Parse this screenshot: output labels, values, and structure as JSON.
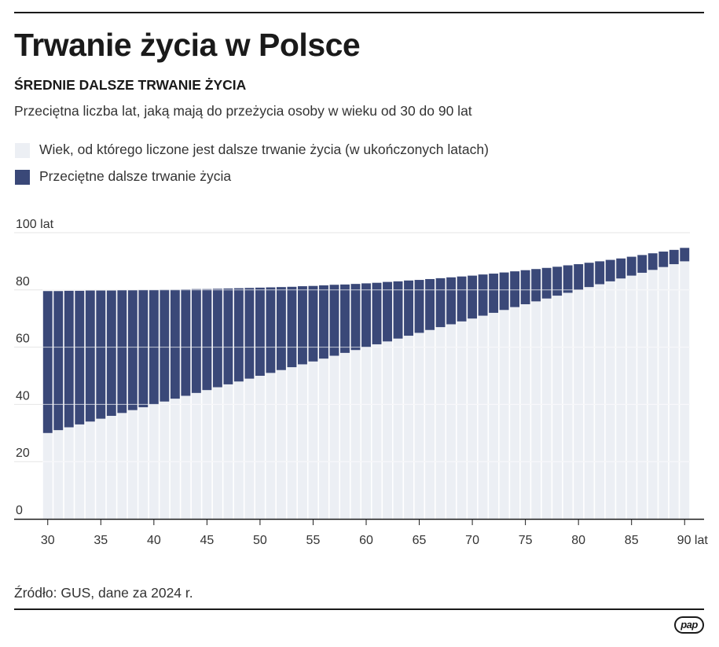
{
  "title": "Trwanie życia w Polsce",
  "subtitle": "ŚREDNIE DALSZE TRWANIE ŻYCIA",
  "description": "Przeciętna liczba lat, jaką mają do przeżycia osoby w wieku od 30 do 90 lat",
  "legend": [
    {
      "label": "Wiek, od którego liczone jest dalsze trwanie życia (w ukończonych latach)",
      "color": "#eceff4"
    },
    {
      "label": "Przeciętne dalsze trwanie życia",
      "color": "#3a4878"
    }
  ],
  "source": "Źródło: GUS, dane za 2024 r.",
  "logo": "pap",
  "chart_data": {
    "type": "bar",
    "stacked": true,
    "x": [
      30,
      31,
      32,
      33,
      34,
      35,
      36,
      37,
      38,
      39,
      40,
      41,
      42,
      43,
      44,
      45,
      46,
      47,
      48,
      49,
      50,
      51,
      52,
      53,
      54,
      55,
      56,
      57,
      58,
      59,
      60,
      61,
      62,
      63,
      64,
      65,
      66,
      67,
      68,
      69,
      70,
      71,
      72,
      73,
      74,
      75,
      76,
      77,
      78,
      79,
      80,
      81,
      82,
      83,
      84,
      85,
      86,
      87,
      88,
      89,
      90
    ],
    "series": [
      {
        "values": [
          30,
          31,
          32,
          33,
          34,
          35,
          36,
          37,
          38,
          39,
          40,
          41,
          42,
          43,
          44,
          45,
          46,
          47,
          48,
          49,
          50,
          51,
          52,
          53,
          54,
          55,
          56,
          57,
          58,
          59,
          60,
          61,
          62,
          63,
          64,
          65,
          66,
          67,
          68,
          69,
          70,
          71,
          72,
          73,
          74,
          75,
          76,
          77,
          78,
          79,
          80,
          81,
          82,
          83,
          84,
          85,
          86,
          87,
          88,
          89,
          90
        ],
        "color": "#eceff4"
      },
      {
        "values": [
          49.6,
          48.6,
          47.7,
          46.7,
          45.8,
          44.8,
          43.8,
          42.9,
          41.9,
          41.0,
          40.0,
          39.1,
          38.1,
          37.2,
          36.3,
          35.3,
          34.4,
          33.5,
          32.6,
          31.7,
          30.8,
          29.9,
          29.0,
          28.1,
          27.3,
          26.4,
          25.6,
          24.8,
          23.9,
          23.1,
          22.3,
          21.5,
          20.8,
          20.0,
          19.3,
          18.5,
          17.8,
          17.1,
          16.4,
          15.7,
          15.0,
          14.4,
          13.7,
          13.1,
          12.5,
          11.9,
          11.3,
          10.7,
          10.1,
          9.6,
          9.0,
          8.5,
          8.0,
          7.5,
          7.0,
          6.6,
          6.2,
          5.8,
          5.4,
          5.0,
          4.7
        ],
        "color": "#3a4878"
      }
    ],
    "xticks": [
      30,
      35,
      40,
      45,
      50,
      55,
      60,
      65,
      70,
      75,
      80,
      85,
      90
    ],
    "xtick_labels": [
      "30",
      "35",
      "40",
      "45",
      "50",
      "55",
      "60",
      "65",
      "70",
      "75",
      "80",
      "85",
      "90 lat"
    ],
    "yticks": [
      0,
      20,
      40,
      60,
      80,
      100
    ],
    "ytick_labels": [
      "0",
      "20",
      "40",
      "60",
      "80",
      "100 lat"
    ],
    "ylim": [
      0,
      100
    ],
    "xlim": [
      29.5,
      90.5
    ],
    "grid": true
  }
}
